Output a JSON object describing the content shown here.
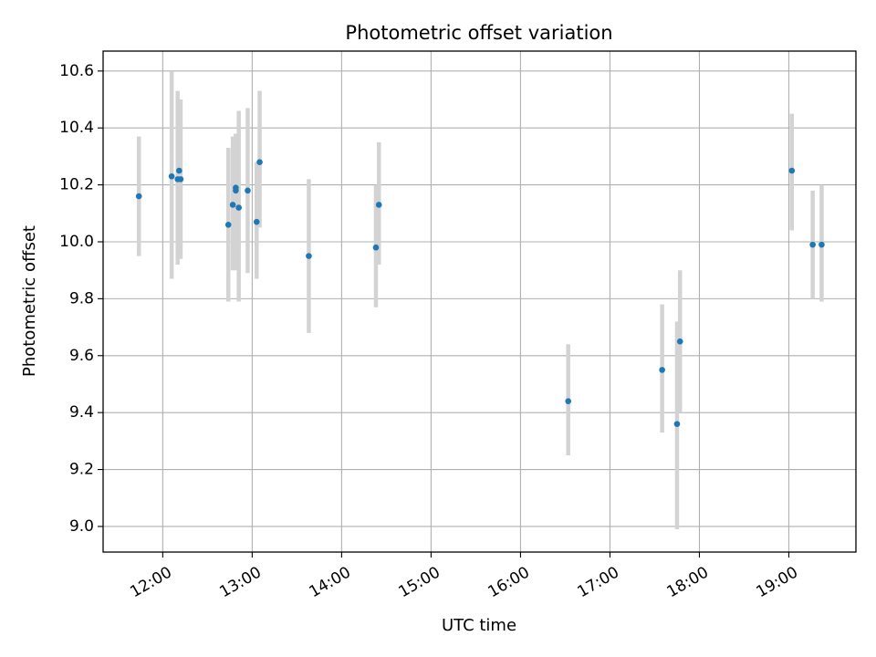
{
  "chart_data": {
    "type": "scatter",
    "title": "Photometric offset variation",
    "xlabel": "UTC time",
    "ylabel": "Photometric offset",
    "xlim": [
      "11:20",
      "19:45"
    ],
    "ylim": [
      8.91,
      10.67
    ],
    "x_ticks": [
      "12:00",
      "13:00",
      "14:00",
      "15:00",
      "16:00",
      "17:00",
      "18:00",
      "19:00"
    ],
    "y_ticks": [
      "9.0",
      "9.2",
      "9.4",
      "9.6",
      "9.8",
      "10.0",
      "10.2",
      "10.4",
      "10.6"
    ],
    "grid": true,
    "point_color": "#1f77b4",
    "errorbar_color": "#d3d3d3",
    "points": [
      {
        "t": "11:44",
        "y": 10.16,
        "lo": 9.95,
        "hi": 10.37
      },
      {
        "t": "12:06",
        "y": 10.23,
        "lo": 9.87,
        "hi": 10.6
      },
      {
        "t": "12:10",
        "y": 10.22,
        "lo": 9.92,
        "hi": 10.53
      },
      {
        "t": "12:11",
        "y": 10.25,
        "lo": 9.94,
        "hi": 10.5
      },
      {
        "t": "12:12",
        "y": 10.22,
        "lo": 9.94,
        "hi": 10.5
      },
      {
        "t": "12:44",
        "y": 10.06,
        "lo": 9.79,
        "hi": 10.33
      },
      {
        "t": "12:47",
        "y": 10.13,
        "lo": 9.9,
        "hi": 10.37
      },
      {
        "t": "12:49",
        "y": 10.19,
        "lo": 9.9,
        "hi": 10.38
      },
      {
        "t": "12:49",
        "y": 10.18,
        "lo": 9.97,
        "hi": 10.38
      },
      {
        "t": "12:51",
        "y": 10.12,
        "lo": 9.79,
        "hi": 10.46
      },
      {
        "t": "12:57",
        "y": 10.18,
        "lo": 9.89,
        "hi": 10.47
      },
      {
        "t": "13:03",
        "y": 10.07,
        "lo": 9.87,
        "hi": 10.28
      },
      {
        "t": "13:05",
        "y": 10.28,
        "lo": 10.05,
        "hi": 10.53
      },
      {
        "t": "13:38",
        "y": 9.95,
        "lo": 9.68,
        "hi": 10.22
      },
      {
        "t": "14:23",
        "y": 9.98,
        "lo": 9.77,
        "hi": 10.2
      },
      {
        "t": "14:25",
        "y": 10.13,
        "lo": 9.92,
        "hi": 10.35
      },
      {
        "t": "16:32",
        "y": 9.44,
        "lo": 9.25,
        "hi": 9.64
      },
      {
        "t": "17:35",
        "y": 9.55,
        "lo": 9.33,
        "hi": 9.78
      },
      {
        "t": "17:45",
        "y": 9.36,
        "lo": 8.99,
        "hi": 9.72
      },
      {
        "t": "17:47",
        "y": 9.65,
        "lo": 9.4,
        "hi": 9.9
      },
      {
        "t": "19:02",
        "y": 10.25,
        "lo": 10.04,
        "hi": 10.45
      },
      {
        "t": "19:16",
        "y": 9.99,
        "lo": 9.8,
        "hi": 10.18
      },
      {
        "t": "19:22",
        "y": 9.99,
        "lo": 9.79,
        "hi": 10.2
      }
    ]
  }
}
